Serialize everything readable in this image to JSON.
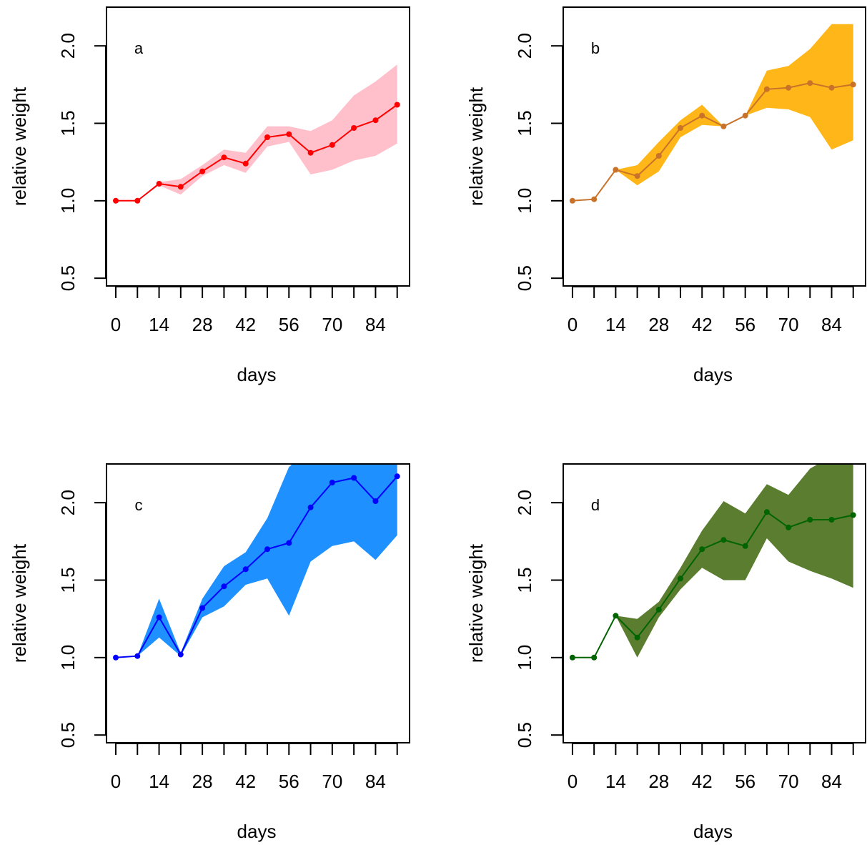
{
  "chart_data": [
    {
      "type": "line",
      "panel_label": "a",
      "xlabel": "days",
      "ylabel": "relative weight",
      "xlim": [
        -3,
        95
      ],
      "ylim": [
        0.45,
        2.25
      ],
      "x_ticks": [
        0,
        7,
        14,
        21,
        28,
        35,
        42,
        49,
        56,
        63,
        70,
        77,
        84,
        91
      ],
      "x_tick_labels": [
        "0",
        "14",
        "28",
        "42",
        "56",
        "70",
        "84"
      ],
      "y_ticks": [
        0.5,
        1.0,
        1.5,
        2.0
      ],
      "y_tick_labels": [
        "0.5",
        "1.0",
        "1.5",
        "2.0"
      ],
      "line_color": "#ff0000",
      "band_color": "#ffc0cb",
      "x": [
        0,
        7,
        14,
        21,
        28,
        35,
        42,
        49,
        56,
        63,
        70,
        77,
        84,
        91
      ],
      "y": [
        1.0,
        1.0,
        1.11,
        1.09,
        1.19,
        1.28,
        1.24,
        1.41,
        1.43,
        1.31,
        1.36,
        1.47,
        1.52,
        1.62
      ],
      "lower": [
        1.0,
        1.0,
        1.1,
        1.04,
        1.16,
        1.23,
        1.18,
        1.35,
        1.38,
        1.17,
        1.2,
        1.26,
        1.29,
        1.37
      ],
      "upper": [
        1.0,
        1.0,
        1.12,
        1.14,
        1.23,
        1.33,
        1.31,
        1.48,
        1.48,
        1.45,
        1.52,
        1.68,
        1.77,
        1.88
      ]
    },
    {
      "type": "line",
      "panel_label": "b",
      "xlabel": "days",
      "ylabel": "relative weight",
      "xlim": [
        -3,
        95
      ],
      "ylim": [
        0.45,
        2.25
      ],
      "x_ticks": [
        0,
        7,
        14,
        21,
        28,
        35,
        42,
        49,
        56,
        63,
        70,
        77,
        84,
        91
      ],
      "x_tick_labels": [
        "0",
        "14",
        "28",
        "42",
        "56",
        "70",
        "84"
      ],
      "y_ticks": [
        0.5,
        1.0,
        1.5,
        2.0
      ],
      "y_tick_labels": [
        "0.5",
        "1.0",
        "1.5",
        "2.0"
      ],
      "line_color": "#c9722a",
      "band_color": "#ffb619",
      "x": [
        0,
        7,
        14,
        21,
        28,
        35,
        42,
        49,
        56,
        63,
        70,
        77,
        84,
        91
      ],
      "y": [
        1.0,
        1.01,
        1.2,
        1.16,
        1.29,
        1.47,
        1.55,
        1.48,
        1.55,
        1.72,
        1.73,
        1.76,
        1.73,
        1.75
      ],
      "lower": [
        1.0,
        1.01,
        1.2,
        1.1,
        1.19,
        1.41,
        1.49,
        1.48,
        1.55,
        1.6,
        1.59,
        1.54,
        1.33,
        1.39
      ],
      "upper": [
        1.0,
        1.01,
        1.2,
        1.23,
        1.38,
        1.52,
        1.62,
        1.48,
        1.55,
        1.84,
        1.87,
        1.98,
        2.14,
        2.14
      ]
    },
    {
      "type": "line",
      "panel_label": "c",
      "xlabel": "days",
      "ylabel": "relative weight",
      "xlim": [
        -3,
        95
      ],
      "ylim": [
        0.45,
        2.25
      ],
      "x_ticks": [
        0,
        7,
        14,
        21,
        28,
        35,
        42,
        49,
        56,
        63,
        70,
        77,
        84,
        91
      ],
      "x_tick_labels": [
        "0",
        "14",
        "28",
        "42",
        "56",
        "70",
        "84"
      ],
      "y_ticks": [
        0.5,
        1.0,
        1.5,
        2.0
      ],
      "y_tick_labels": [
        "0.5",
        "1.0",
        "1.5",
        "2.0"
      ],
      "line_color": "#0000ff",
      "band_color": "#1e90ff",
      "x": [
        0,
        7,
        14,
        21,
        28,
        35,
        42,
        49,
        56,
        63,
        70,
        77,
        84,
        91
      ],
      "y": [
        1.0,
        1.01,
        1.26,
        1.02,
        1.32,
        1.46,
        1.57,
        1.7,
        1.74,
        1.97,
        2.13,
        2.16,
        2.01,
        2.17
      ],
      "lower": [
        1.0,
        1.01,
        1.13,
        1.01,
        1.26,
        1.33,
        1.47,
        1.51,
        1.27,
        1.62,
        1.72,
        1.75,
        1.63,
        1.79
      ],
      "upper": [
        1.0,
        1.01,
        1.38,
        1.03,
        1.38,
        1.59,
        1.68,
        1.9,
        2.23,
        2.35,
        2.4,
        2.4,
        2.4,
        2.4
      ]
    },
    {
      "type": "line",
      "panel_label": "d",
      "xlabel": "days",
      "ylabel": "relative weight",
      "xlim": [
        -3,
        95
      ],
      "ylim": [
        0.45,
        2.25
      ],
      "x_ticks": [
        0,
        7,
        14,
        21,
        28,
        35,
        42,
        49,
        56,
        63,
        70,
        77,
        84,
        91
      ],
      "x_tick_labels": [
        "0",
        "14",
        "28",
        "42",
        "56",
        "70",
        "84"
      ],
      "y_ticks": [
        0.5,
        1.0,
        1.5,
        2.0
      ],
      "y_tick_labels": [
        "0.5",
        "1.0",
        "1.5",
        "2.0"
      ],
      "line_color": "#006400",
      "band_color": "#5b7d2f",
      "x": [
        0,
        7,
        14,
        21,
        28,
        35,
        42,
        49,
        56,
        63,
        70,
        77,
        84,
        91
      ],
      "y": [
        1.0,
        1.0,
        1.27,
        1.13,
        1.31,
        1.51,
        1.7,
        1.76,
        1.72,
        1.94,
        1.84,
        1.89,
        1.89,
        1.92
      ],
      "lower": [
        1.0,
        1.0,
        1.27,
        1.0,
        1.26,
        1.44,
        1.58,
        1.5,
        1.5,
        1.77,
        1.62,
        1.56,
        1.51,
        1.45
      ],
      "upper": [
        1.0,
        1.0,
        1.27,
        1.25,
        1.36,
        1.58,
        1.82,
        2.01,
        1.93,
        2.12,
        2.05,
        2.22,
        2.3,
        2.3
      ]
    }
  ]
}
